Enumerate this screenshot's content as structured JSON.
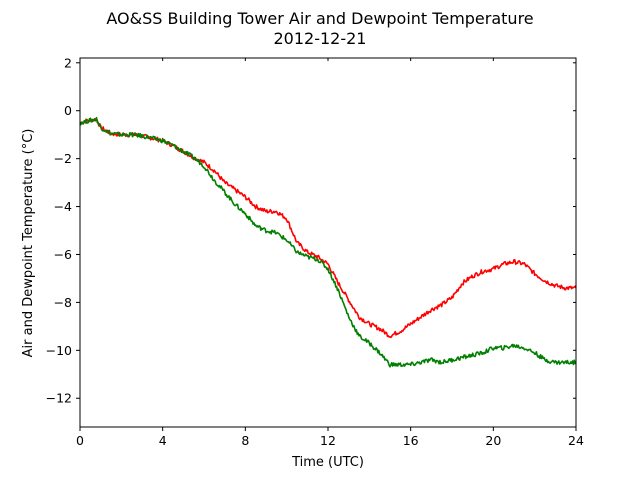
{
  "chart_data": {
    "type": "line",
    "title": "AO&SS Building Tower Air and Dewpoint Temperature",
    "subtitle": "2012-12-21",
    "xlabel": "Time (UTC)",
    "ylabel": "Air and Dewpoint Temperature (°C)",
    "xlim": [
      0,
      24
    ],
    "ylim": [
      -13.2,
      2.2
    ],
    "xticks": [
      0,
      4,
      8,
      12,
      16,
      20,
      24
    ],
    "yticks": [
      -12,
      -10,
      -8,
      -6,
      -4,
      -2,
      0,
      2
    ],
    "grid": false,
    "legend": "none",
    "series": [
      {
        "color": "#ff0000",
        "x": [
          0,
          0.5,
          0.8,
          1.0,
          1.5,
          2,
          2.5,
          3,
          3.5,
          4,
          4.5,
          5,
          5.5,
          6,
          6.5,
          7,
          7.5,
          8,
          8.5,
          9,
          9.5,
          10,
          10.5,
          11,
          11.5,
          12,
          12.5,
          13,
          13.5,
          14,
          14.5,
          15,
          15.5,
          16,
          16.5,
          17,
          17.5,
          18,
          18.5,
          19,
          19.5,
          20,
          20.5,
          21,
          21.5,
          22,
          22.5,
          23,
          23.5,
          24
        ],
        "y": [
          -0.5,
          -0.4,
          -0.35,
          -0.7,
          -0.95,
          -1.0,
          -1.0,
          -1.05,
          -1.15,
          -1.25,
          -1.45,
          -1.7,
          -1.95,
          -2.15,
          -2.5,
          -3.0,
          -3.3,
          -3.6,
          -4.0,
          -4.2,
          -4.2,
          -4.5,
          -5.5,
          -5.9,
          -6.1,
          -6.4,
          -7.2,
          -7.9,
          -8.6,
          -8.9,
          -9.1,
          -9.4,
          -9.2,
          -8.9,
          -8.6,
          -8.3,
          -8.1,
          -7.8,
          -7.2,
          -6.9,
          -6.7,
          -6.6,
          -6.4,
          -6.3,
          -6.4,
          -6.8,
          -7.1,
          -7.3,
          -7.4,
          -7.4
        ]
      },
      {
        "color": "#008000",
        "x": [
          0,
          0.5,
          0.8,
          1.0,
          1.5,
          2,
          2.5,
          3,
          3.5,
          4,
          4.5,
          5,
          5.5,
          6,
          6.5,
          7,
          7.5,
          8,
          8.5,
          9,
          9.5,
          10,
          10.5,
          11,
          11.5,
          12,
          12.5,
          13,
          13.5,
          14,
          14.5,
          15,
          15.5,
          16,
          16.5,
          17,
          17.5,
          18,
          18.5,
          19,
          19.5,
          20,
          20.5,
          21,
          21.5,
          22,
          22.5,
          23,
          23.5,
          24
        ],
        "y": [
          -0.5,
          -0.4,
          -0.35,
          -0.7,
          -0.95,
          -1.0,
          -1.0,
          -1.05,
          -1.15,
          -1.25,
          -1.45,
          -1.7,
          -1.95,
          -2.3,
          -2.9,
          -3.4,
          -3.9,
          -4.3,
          -4.8,
          -5.0,
          -5.1,
          -5.4,
          -5.9,
          -6.1,
          -6.2,
          -6.6,
          -7.5,
          -8.6,
          -9.4,
          -9.7,
          -10.1,
          -10.6,
          -10.6,
          -10.6,
          -10.5,
          -10.4,
          -10.5,
          -10.4,
          -10.3,
          -10.2,
          -10.1,
          -9.9,
          -9.9,
          -9.8,
          -9.9,
          -10.1,
          -10.4,
          -10.5,
          -10.5,
          -10.5
        ]
      }
    ]
  }
}
